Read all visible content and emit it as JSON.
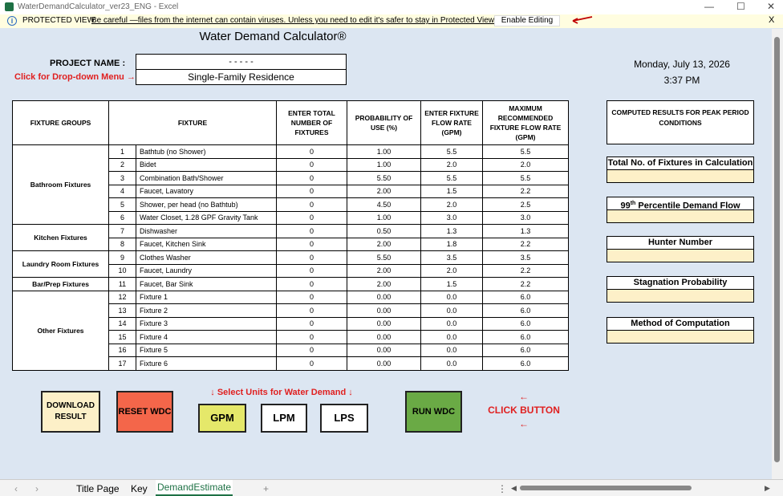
{
  "window": {
    "title": "WaterDemandCalculator_ver23_ENG - Excel"
  },
  "protected": {
    "label": "PROTECTED VIEW",
    "message": "Be careful —files from the internet can contain viruses. Unless you need to edit it's safer to stay in Protected View.",
    "enable": "Enable Editing",
    "close": "X"
  },
  "sheet": {
    "title": "Water Demand Calculator®",
    "project_label": "PROJECT NAME :",
    "dropdown_hint": "Click for Drop-down Menu →",
    "project_name": "- - - - -",
    "project_type": "Single-Family Residence",
    "date": "Monday, July 13, 2026",
    "time": "3:37 PM"
  },
  "table": {
    "headers": {
      "group": "FIXTURE GROUPS",
      "fixture": "FIXTURE",
      "count": "ENTER TOTAL NUMBER OF FIXTURES",
      "prob": "PROBABILITY OF USE (%)",
      "flow": "ENTER FIXTURE FLOW RATE (GPM)",
      "max": "MAXIMUM RECOMMENDED FIXTURE FLOW RATE (GPM)"
    },
    "groups": [
      "Bathroom Fixtures",
      "Kitchen Fixtures",
      "Laundry Room Fixtures",
      "Bar/Prep Fixtures",
      "Other Fixtures"
    ],
    "rows": [
      {
        "n": "1",
        "name": "Bathtub (no Shower)",
        "count": "0",
        "prob": "1.00",
        "flow": "5.5",
        "max": "5.5"
      },
      {
        "n": "2",
        "name": "Bidet",
        "count": "0",
        "prob": "1.00",
        "flow": "2.0",
        "max": "2.0"
      },
      {
        "n": "3",
        "name": "Combination Bath/Shower",
        "count": "0",
        "prob": "5.50",
        "flow": "5.5",
        "max": "5.5"
      },
      {
        "n": "4",
        "name": "Faucet, Lavatory",
        "count": "0",
        "prob": "2.00",
        "flow": "1.5",
        "max": "2.2"
      },
      {
        "n": "5",
        "name": "Shower, per head (no Bathtub)",
        "count": "0",
        "prob": "4.50",
        "flow": "2.0",
        "max": "2.5"
      },
      {
        "n": "6",
        "name": "Water Closet, 1.28 GPF Gravity Tank",
        "count": "0",
        "prob": "1.00",
        "flow": "3.0",
        "max": "3.0"
      },
      {
        "n": "7",
        "name": "Dishwasher",
        "count": "0",
        "prob": "0.50",
        "flow": "1.3",
        "max": "1.3"
      },
      {
        "n": "8",
        "name": "Faucet, Kitchen Sink",
        "count": "0",
        "prob": "2.00",
        "flow": "1.8",
        "max": "2.2"
      },
      {
        "n": "9",
        "name": "Clothes Washer",
        "count": "0",
        "prob": "5.50",
        "flow": "3.5",
        "max": "3.5"
      },
      {
        "n": "10",
        "name": "Faucet, Laundry",
        "count": "0",
        "prob": "2.00",
        "flow": "2.0",
        "max": "2.2"
      },
      {
        "n": "11",
        "name": "Faucet, Bar Sink",
        "count": "0",
        "prob": "2.00",
        "flow": "1.5",
        "max": "2.2"
      },
      {
        "n": "12",
        "name": "Fixture 1",
        "count": "0",
        "prob": "0.00",
        "flow": "0.0",
        "max": "6.0"
      },
      {
        "n": "13",
        "name": "Fixture 2",
        "count": "0",
        "prob": "0.00",
        "flow": "0.0",
        "max": "6.0"
      },
      {
        "n": "14",
        "name": "Fixture 3",
        "count": "0",
        "prob": "0.00",
        "flow": "0.0",
        "max": "6.0"
      },
      {
        "n": "15",
        "name": "Fixture 4",
        "count": "0",
        "prob": "0.00",
        "flow": "0.0",
        "max": "6.0"
      },
      {
        "n": "16",
        "name": "Fixture 5",
        "count": "0",
        "prob": "0.00",
        "flow": "0.0",
        "max": "6.0"
      },
      {
        "n": "17",
        "name": "Fixture 6",
        "count": "0",
        "prob": "0.00",
        "flow": "0.0",
        "max": "6.0"
      }
    ]
  },
  "results": {
    "header": "COMPUTED RESULTS FOR PEAK PERIOD CONDITIONS",
    "fixtures": "Total No. of Fixtures in Calculation",
    "percentile": "99th Percentile Demand Flow",
    "hunter": "Hunter Number",
    "stagnation": "Stagnation Probability",
    "method": "Method of Computation"
  },
  "buttons": {
    "download": "DOWNLOAD RESULT",
    "reset": "RESET WDC",
    "gpm": "GPM",
    "lpm": "LPM",
    "lps": "LPS",
    "run": "RUN WDC",
    "units_hint": "↓   Select Units for Water Demand   ↓",
    "click_hint": "CLICK BUTTON"
  },
  "tabs": {
    "title": "Title Page",
    "key": "Key",
    "demand": "DemandEstimate",
    "add": "+"
  },
  "colors": {
    "reset": "#f4664a",
    "run": "#6aaa45",
    "gpm": "#e5e86a",
    "download": "#fdf0c8",
    "hint": "#e02020"
  }
}
